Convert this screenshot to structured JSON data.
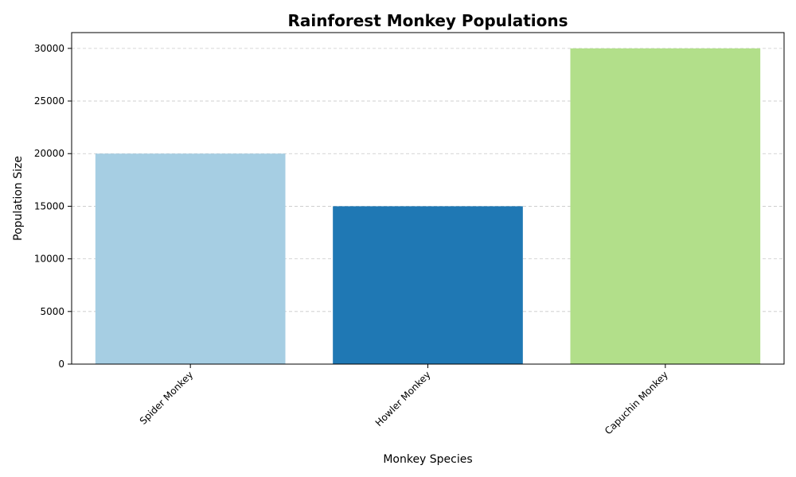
{
  "chart_data": {
    "type": "bar",
    "title": "Rainforest Monkey Populations",
    "xlabel": "Monkey Species",
    "ylabel": "Population Size",
    "categories": [
      "Spider Monkey",
      "Howler Monkey",
      "Capuchin Monkey"
    ],
    "values": [
      20000,
      15000,
      30000
    ],
    "colors": [
      "#a6cee3",
      "#1f78b4",
      "#b2df8a"
    ],
    "ylim": [
      0,
      31500
    ],
    "yticks": [
      0,
      5000,
      10000,
      15000,
      20000,
      25000,
      30000
    ],
    "grid": "y-dashed",
    "legend": "none"
  }
}
